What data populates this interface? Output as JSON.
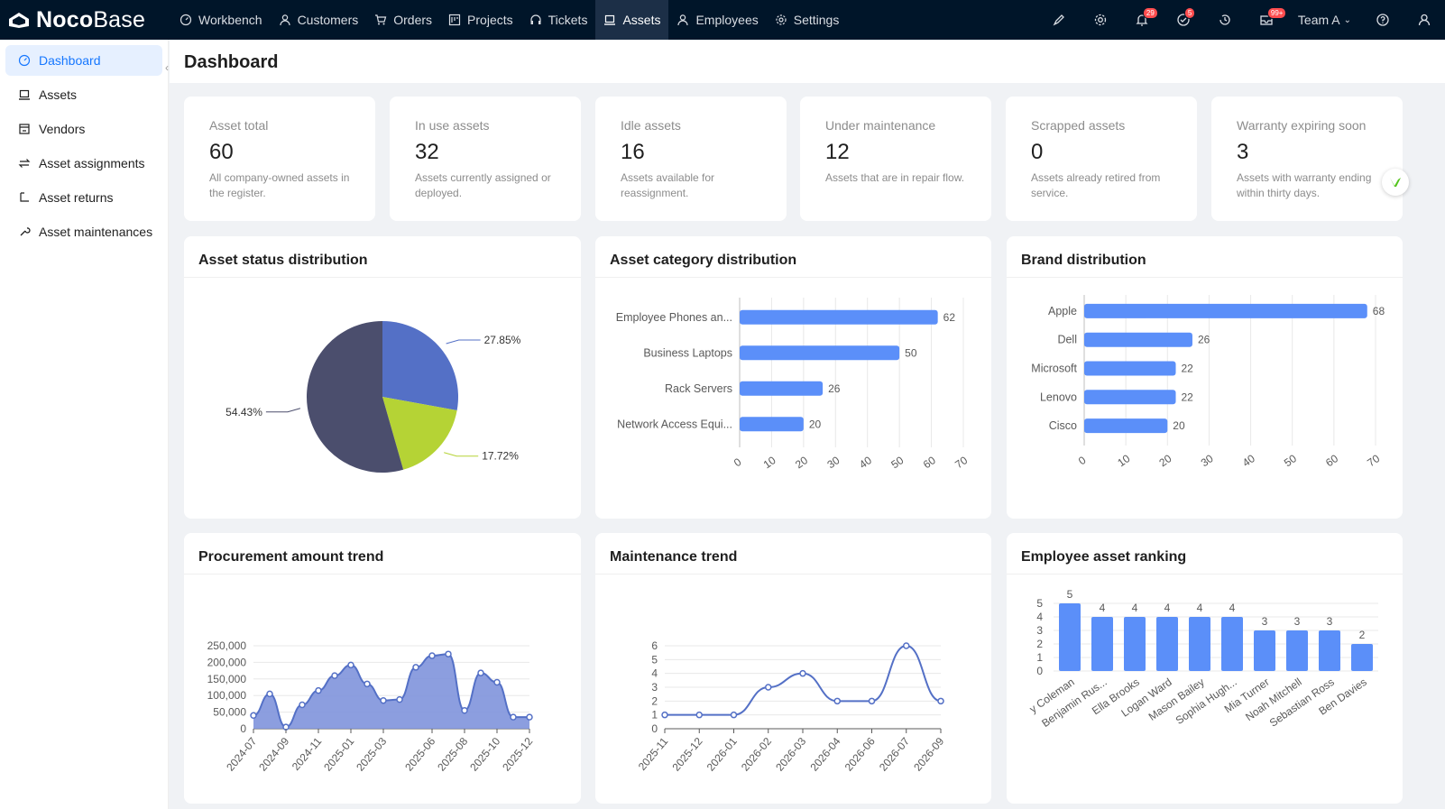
{
  "app": {
    "logo_bold": "Noco",
    "logo_light": "Base"
  },
  "nav": [
    {
      "label": "Workbench",
      "icon": "dashboard-icon"
    },
    {
      "label": "Customers",
      "icon": "user-icon"
    },
    {
      "label": "Orders",
      "icon": "cart-icon"
    },
    {
      "label": "Projects",
      "icon": "project-icon"
    },
    {
      "label": "Tickets",
      "icon": "headset-icon"
    },
    {
      "label": "Assets",
      "icon": "laptop-icon",
      "active": true
    },
    {
      "label": "Employees",
      "icon": "user-icon"
    },
    {
      "label": "Settings",
      "icon": "gear-icon"
    }
  ],
  "badges": {
    "notifications": "29",
    "tasks": "5",
    "inbox": "99+"
  },
  "team": {
    "label": "Team A"
  },
  "sidebar": {
    "items": [
      {
        "label": "Dashboard",
        "icon": "dashboard-icon",
        "active": true
      },
      {
        "label": "Assets",
        "icon": "laptop-icon"
      },
      {
        "label": "Vendors",
        "icon": "shop-icon"
      },
      {
        "label": "Asset assignments",
        "icon": "swap-icon"
      },
      {
        "label": "Asset returns",
        "icon": "return-icon"
      },
      {
        "label": "Asset maintenances",
        "icon": "tool-icon"
      }
    ]
  },
  "page": {
    "title": "Dashboard"
  },
  "stats": [
    {
      "label": "Asset total",
      "value": "60",
      "desc": "All company-owned assets in the register."
    },
    {
      "label": "In use assets",
      "value": "32",
      "desc": "Assets currently assigned or deployed."
    },
    {
      "label": "Idle assets",
      "value": "16",
      "desc": "Assets available for reassignment."
    },
    {
      "label": "Under maintenance",
      "value": "12",
      "desc": "Assets that are in repair flow."
    },
    {
      "label": "Scrapped assets",
      "value": "0",
      "desc": "Assets already retired from service."
    },
    {
      "label": "Warranty expiring soon",
      "value": "3",
      "desc": "Assets with warranty ending within thirty days."
    }
  ],
  "charts": {
    "status_title": "Asset status distribution",
    "category_title": "Asset category distribution",
    "brand_title": "Brand distribution",
    "procurement_title": "Procurement amount trend",
    "maintenance_title": "Maintenance trend",
    "ranking_title": "Employee asset ranking"
  },
  "colors": {
    "primary": "#5470c6",
    "bar": "#5b8ff9",
    "pie": [
      "#5470c6",
      "#b5d335",
      "#4b4e6d"
    ],
    "topbar": "#001529"
  },
  "chart_data": [
    {
      "type": "pie",
      "title": "Asset status distribution",
      "slices": [
        {
          "label": "27.85%",
          "value": 27.85
        },
        {
          "label": "17.72%",
          "value": 17.72
        },
        {
          "label": "54.43%",
          "value": 54.43
        }
      ]
    },
    {
      "type": "bar",
      "orientation": "horizontal",
      "title": "Asset category distribution",
      "categories": [
        "Employee Phones an...",
        "Business Laptops",
        "Rack Servers",
        "Network Access Equi..."
      ],
      "values": [
        62,
        50,
        26,
        20
      ],
      "ticks": [
        "0",
        "10",
        "20",
        "30",
        "40",
        "50",
        "60",
        "70"
      ],
      "xlim": [
        0,
        70
      ]
    },
    {
      "type": "bar",
      "orientation": "horizontal",
      "title": "Brand distribution",
      "categories": [
        "Apple",
        "Dell",
        "Microsoft",
        "Lenovo",
        "Cisco"
      ],
      "values": [
        68,
        26,
        22,
        22,
        20
      ],
      "ticks": [
        "0",
        "10",
        "20",
        "30",
        "40",
        "50",
        "60",
        "70"
      ],
      "xlim": [
        0,
        70
      ]
    },
    {
      "type": "area",
      "title": "Procurement amount trend",
      "x": [
        "2024-07",
        "2024-08",
        "2024-09",
        "2024-10",
        "2024-11",
        "2024-12",
        "2025-01",
        "2025-02",
        "2025-03",
        "2025-04",
        "2025-05",
        "2025-06",
        "2025-07",
        "2025-08",
        "2025-09",
        "2025-10",
        "2025-11",
        "2025-12"
      ],
      "x_tick_labels": [
        "2024-07",
        "2024-09",
        "2024-11",
        "2025-01",
        "2025-03",
        "2025-06",
        "2025-08",
        "2025-10",
        "2025-12"
      ],
      "values": [
        40000,
        105000,
        5000,
        72000,
        115000,
        160000,
        192000,
        135000,
        85000,
        88000,
        185000,
        220000,
        225000,
        55000,
        168000,
        140000,
        35000,
        35000
      ],
      "y_tick_labels": [
        "0",
        "50,000",
        "100,000",
        "150,000",
        "200,000",
        "250,000"
      ],
      "ylim": [
        0,
        250000
      ]
    },
    {
      "type": "line",
      "title": "Maintenance trend",
      "x": [
        "2025-11",
        "2025-12",
        "2026-01",
        "2026-02",
        "2026-03",
        "2026-04",
        "2026-06",
        "2026-07",
        "2026-09"
      ],
      "values": [
        1,
        1,
        1,
        3,
        4,
        2,
        2,
        6,
        2
      ],
      "y_tick_labels": [
        "0",
        "1",
        "2",
        "3",
        "4",
        "5",
        "6"
      ],
      "ylim": [
        0,
        6
      ]
    },
    {
      "type": "bar",
      "title": "Employee asset ranking",
      "categories": [
        "y Coleman",
        "Benjamin Rus...",
        "Ella Brooks",
        "Logan Ward",
        "Mason Bailey",
        "Sophia Hugh...",
        "Mia Turner",
        "Noah Mitchell",
        "Sebastian Ross",
        "Ben Davies"
      ],
      "values": [
        5,
        4,
        4,
        4,
        4,
        4,
        3,
        3,
        3,
        2
      ],
      "y_tick_labels": [
        "0",
        "1",
        "2",
        "3",
        "4",
        "5"
      ],
      "ylim": [
        0,
        5
      ]
    }
  ]
}
